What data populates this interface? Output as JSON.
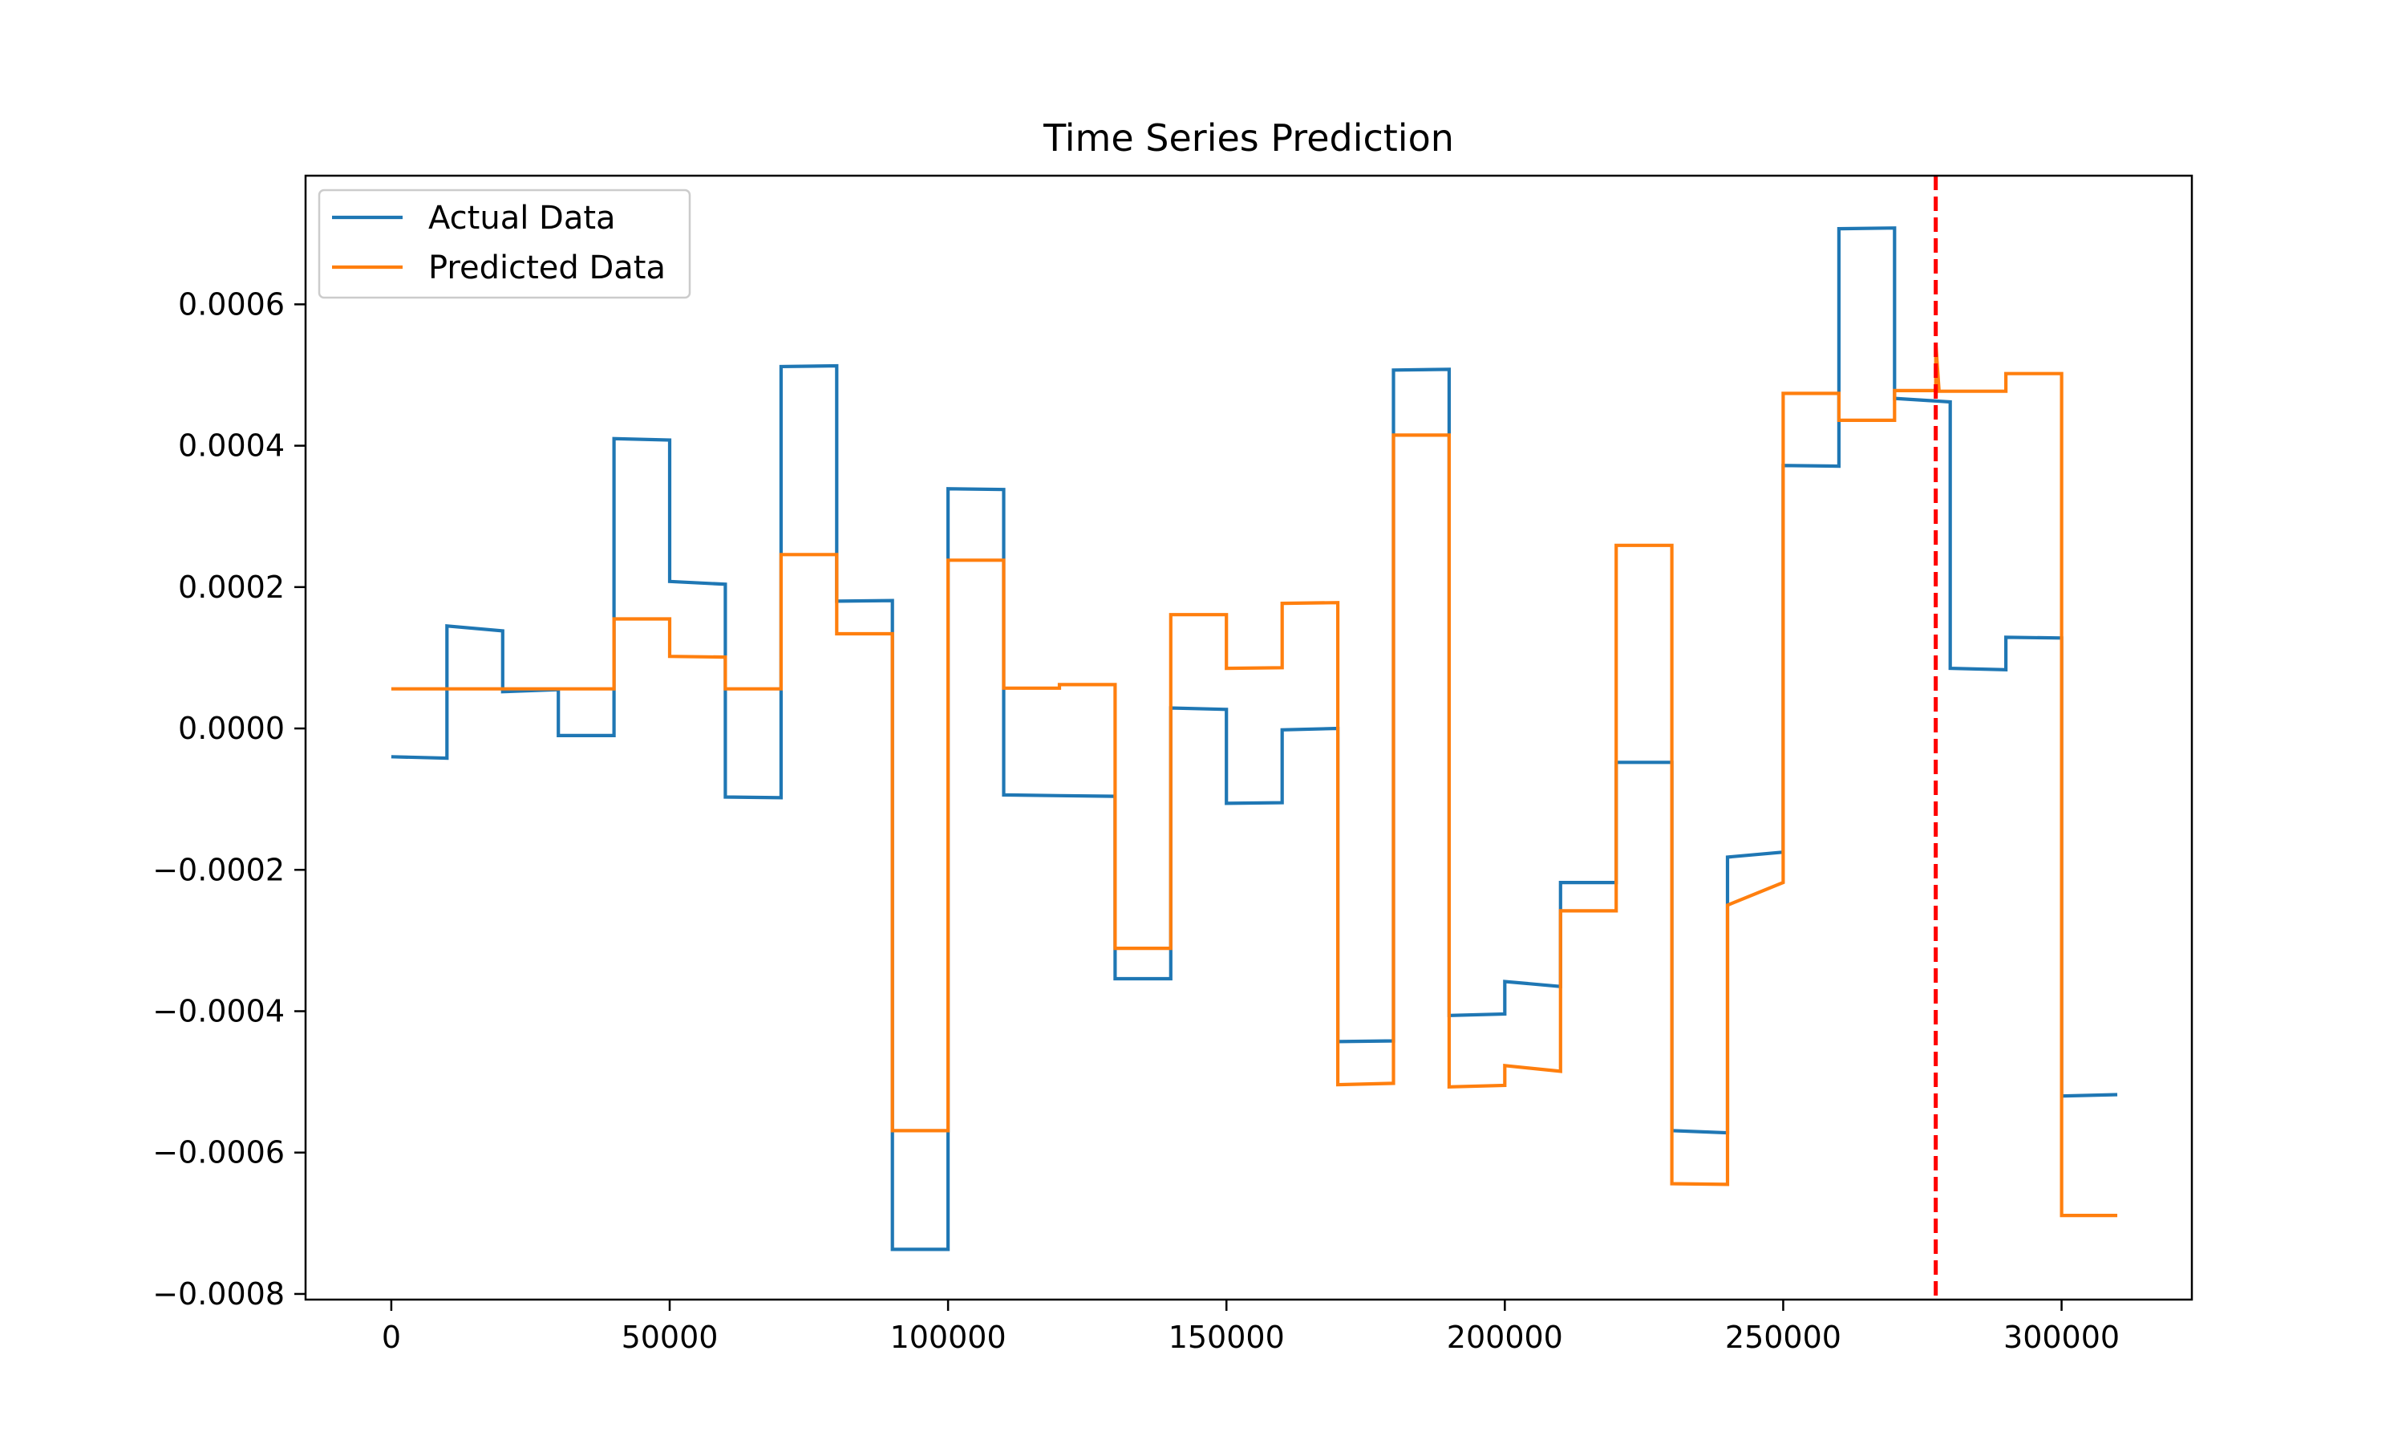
{
  "chart_data": {
    "type": "line",
    "title": "Time Series Prediction",
    "xlabel": "",
    "ylabel": "",
    "xlim": [
      -15400,
      323400
    ],
    "ylim": [
      -0.000808,
      0.000782
    ],
    "x_ticks": [
      0,
      50000,
      100000,
      150000,
      200000,
      250000,
      300000
    ],
    "x_tick_labels": [
      "0",
      "50000",
      "100000",
      "150000",
      "200000",
      "250000",
      "300000"
    ],
    "y_ticks": [
      0.0006,
      0.0004,
      0.0002,
      0.0,
      -0.0002,
      -0.0004,
      -0.0006,
      -0.0008
    ],
    "y_tick_labels": [
      "0.0006",
      "0.0004",
      "0.0002",
      "0.0000",
      "−0.0002",
      "−0.0004",
      "−0.0006",
      "−0.0008"
    ],
    "grid": false,
    "legend_position": "top-left",
    "vline": {
      "x": 277400,
      "color": "#ff0000",
      "style": "dashed"
    },
    "series": [
      {
        "name": "Actual Data",
        "color": "#1f77b4",
        "x": [
          0,
          10000,
          10000,
          20000,
          20000,
          30000,
          30000,
          40000,
          40000,
          50000,
          50000,
          60000,
          60000,
          70000,
          70000,
          80000,
          80000,
          90000,
          90000,
          100000,
          100000,
          110000,
          110000,
          120000,
          120000,
          130000,
          130000,
          140000,
          140000,
          150000,
          150000,
          160000,
          160000,
          170000,
          170000,
          180000,
          180000,
          190000,
          190000,
          200000,
          200000,
          210000,
          210000,
          220000,
          220000,
          230000,
          230000,
          240000,
          240000,
          250000,
          250000,
          260000,
          260000,
          270000,
          270000,
          280000,
          280000,
          290000,
          290000,
          300000,
          300000,
          310000
        ],
        "y": [
          -4e-05,
          -4.2e-05,
          0.000145,
          0.000138,
          5.2e-05,
          5.5e-05,
          -1e-05,
          -1e-05,
          0.00041,
          0.000408,
          0.000208,
          0.000204,
          -9.7e-05,
          -9.8e-05,
          0.000512,
          0.000513,
          0.00018,
          0.000181,
          -0.000737,
          -0.000737,
          0.000339,
          0.000338,
          -9.4e-05,
          -9.5e-05,
          -9.5e-05,
          -9.6e-05,
          -0.000354,
          -0.000354,
          2.9e-05,
          2.7e-05,
          -0.000106,
          -0.000105,
          -2e-06,
          0.0,
          -0.000443,
          -0.000442,
          0.000507,
          0.000508,
          -0.000406,
          -0.000404,
          -0.000358,
          -0.000365,
          -0.000218,
          -0.000218,
          -4.8e-05,
          -4.8e-05,
          -0.000569,
          -0.000572,
          -0.000182,
          -0.000175,
          0.000372,
          0.000371,
          0.000707,
          0.000708,
          0.000467,
          0.000462,
          8.5e-05,
          8.3e-05,
          0.000129,
          0.000128,
          -0.00052,
          -0.000518
        ]
      },
      {
        "name": "Predicted Data",
        "color": "#ff7f0e",
        "x": [
          0,
          10000,
          10000,
          20000,
          20000,
          30000,
          30000,
          40000,
          40000,
          50000,
          50000,
          60000,
          60000,
          70000,
          70000,
          80000,
          80000,
          90000,
          90000,
          100000,
          100000,
          110000,
          110000,
          120000,
          120000,
          130000,
          130000,
          140000,
          140000,
          150000,
          150000,
          160000,
          160000,
          170000,
          170000,
          180000,
          180000,
          190000,
          190000,
          200000,
          200000,
          210000,
          210000,
          220000,
          220000,
          230000,
          230000,
          240000,
          240000,
          250000,
          250000,
          260000,
          260000,
          270000,
          270000,
          277400,
          277400,
          278000,
          278000,
          290000,
          290000,
          300000,
          300000,
          310000
        ],
        "y": [
          5.6e-05,
          5.6e-05,
          5.6e-05,
          5.6e-05,
          5.6e-05,
          5.6e-05,
          5.6e-05,
          5.6e-05,
          0.000155,
          0.000155,
          0.000102,
          0.000101,
          5.6e-05,
          5.6e-05,
          0.000246,
          0.000246,
          0.000134,
          0.000134,
          -0.000569,
          -0.000569,
          0.000238,
          0.000238,
          5.7e-05,
          5.7e-05,
          6.2e-05,
          6.2e-05,
          -0.000311,
          -0.000311,
          0.000161,
          0.000161,
          8.5e-05,
          8.6e-05,
          0.000177,
          0.000178,
          -0.000504,
          -0.000502,
          0.000415,
          0.000415,
          -0.000507,
          -0.000505,
          -0.000477,
          -0.000485,
          -0.000258,
          -0.000258,
          0.000259,
          0.000259,
          -0.000644,
          -0.000645,
          -0.00025,
          -0.000218,
          0.000474,
          0.000474,
          0.000436,
          0.000436,
          0.000478,
          0.000478,
          0.000545,
          0.000477,
          0.000477,
          0.000477,
          0.000502,
          0.000502,
          -0.000689,
          -0.000689
        ]
      }
    ]
  }
}
